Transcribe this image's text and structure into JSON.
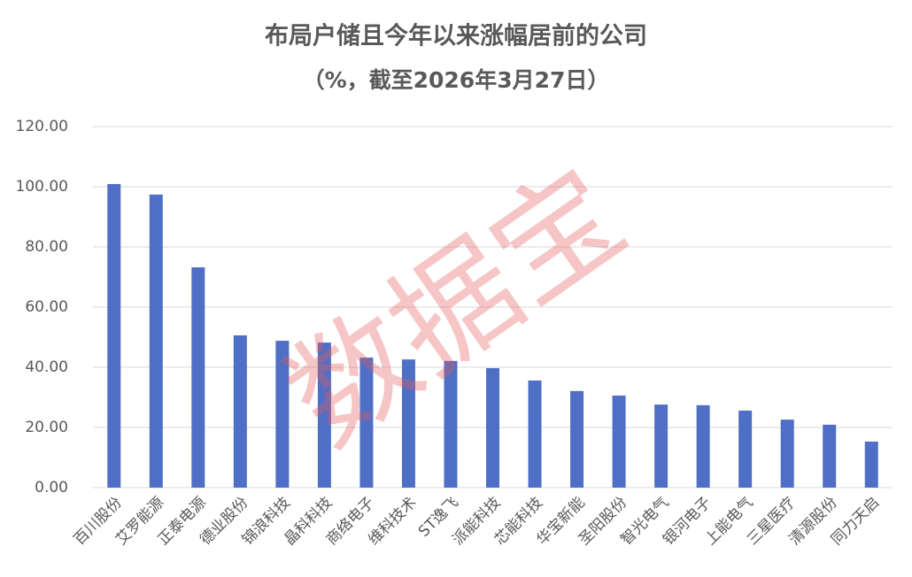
{
  "chart_data": {
    "type": "bar",
    "title": "布局户储且今年以来涨幅居前的公司",
    "subtitle": "（%，截至2026年3月27日）",
    "watermark": "数据宝",
    "categories": [
      "百川股份",
      "艾罗能源",
      "正泰电源",
      "德业股份",
      "锦浪科技",
      "晶科科技",
      "商络电子",
      "维科技术",
      "ST逸飞",
      "派能科技",
      "芯能科技",
      "华宝新能",
      "圣阳股份",
      "智光电气",
      "银河电子",
      "上能电气",
      "三星医疗",
      "清源股份",
      "同力天启"
    ],
    "values": [
      100.9,
      97.4,
      73.2,
      50.6,
      48.8,
      48.2,
      43.2,
      42.6,
      42.1,
      39.7,
      35.6,
      32.1,
      30.6,
      27.6,
      27.4,
      25.6,
      22.6,
      20.9,
      15.3
    ],
    "color": "#4f6fc6",
    "ylim": [
      0,
      120
    ],
    "yticks": [
      {
        "value": 0,
        "label": "0.00"
      },
      {
        "value": 20,
        "label": "20.00"
      },
      {
        "value": 40,
        "label": "40.00"
      },
      {
        "value": 60,
        "label": "60.00"
      },
      {
        "value": 80,
        "label": "80.00"
      },
      {
        "value": 100,
        "label": "100.00"
      },
      {
        "value": 120,
        "label": "120.00"
      }
    ],
    "grid": true
  }
}
